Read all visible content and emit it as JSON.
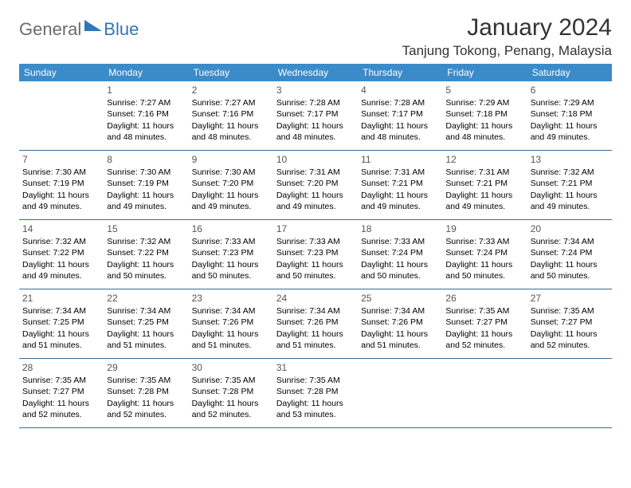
{
  "logo": {
    "general": "General",
    "blue": "Blue"
  },
  "header": {
    "month_title": "January 2024",
    "location": "Tanjung Tokong, Penang, Malaysia"
  },
  "colors": {
    "header_bar": "#3b8bc9",
    "row_border": "#3b6a93",
    "logo_grey": "#6b6b6b",
    "logo_blue": "#2f77b8",
    "title_color": "#333333",
    "daynum_color": "#555555",
    "background": "#ffffff"
  },
  "typography": {
    "month_title_fontsize": 30,
    "location_fontsize": 17,
    "dow_fontsize": 12,
    "cell_fontsize": 10.5,
    "daynum_fontsize": 12,
    "font_family": "Arial"
  },
  "layout": {
    "columns": 7,
    "rows": 5,
    "start_day_index": 1
  },
  "dow": [
    "Sunday",
    "Monday",
    "Tuesday",
    "Wednesday",
    "Thursday",
    "Friday",
    "Saturday"
  ],
  "days": [
    {
      "n": "1",
      "sunrise": "7:27 AM",
      "sunset": "7:16 PM",
      "daylight": "11 hours and 48 minutes."
    },
    {
      "n": "2",
      "sunrise": "7:27 AM",
      "sunset": "7:16 PM",
      "daylight": "11 hours and 48 minutes."
    },
    {
      "n": "3",
      "sunrise": "7:28 AM",
      "sunset": "7:17 PM",
      "daylight": "11 hours and 48 minutes."
    },
    {
      "n": "4",
      "sunrise": "7:28 AM",
      "sunset": "7:17 PM",
      "daylight": "11 hours and 48 minutes."
    },
    {
      "n": "5",
      "sunrise": "7:29 AM",
      "sunset": "7:18 PM",
      "daylight": "11 hours and 48 minutes."
    },
    {
      "n": "6",
      "sunrise": "7:29 AM",
      "sunset": "7:18 PM",
      "daylight": "11 hours and 49 minutes."
    },
    {
      "n": "7",
      "sunrise": "7:30 AM",
      "sunset": "7:19 PM",
      "daylight": "11 hours and 49 minutes."
    },
    {
      "n": "8",
      "sunrise": "7:30 AM",
      "sunset": "7:19 PM",
      "daylight": "11 hours and 49 minutes."
    },
    {
      "n": "9",
      "sunrise": "7:30 AM",
      "sunset": "7:20 PM",
      "daylight": "11 hours and 49 minutes."
    },
    {
      "n": "10",
      "sunrise": "7:31 AM",
      "sunset": "7:20 PM",
      "daylight": "11 hours and 49 minutes."
    },
    {
      "n": "11",
      "sunrise": "7:31 AM",
      "sunset": "7:21 PM",
      "daylight": "11 hours and 49 minutes."
    },
    {
      "n": "12",
      "sunrise": "7:31 AM",
      "sunset": "7:21 PM",
      "daylight": "11 hours and 49 minutes."
    },
    {
      "n": "13",
      "sunrise": "7:32 AM",
      "sunset": "7:21 PM",
      "daylight": "11 hours and 49 minutes."
    },
    {
      "n": "14",
      "sunrise": "7:32 AM",
      "sunset": "7:22 PM",
      "daylight": "11 hours and 49 minutes."
    },
    {
      "n": "15",
      "sunrise": "7:32 AM",
      "sunset": "7:22 PM",
      "daylight": "11 hours and 50 minutes."
    },
    {
      "n": "16",
      "sunrise": "7:33 AM",
      "sunset": "7:23 PM",
      "daylight": "11 hours and 50 minutes."
    },
    {
      "n": "17",
      "sunrise": "7:33 AM",
      "sunset": "7:23 PM",
      "daylight": "11 hours and 50 minutes."
    },
    {
      "n": "18",
      "sunrise": "7:33 AM",
      "sunset": "7:24 PM",
      "daylight": "11 hours and 50 minutes."
    },
    {
      "n": "19",
      "sunrise": "7:33 AM",
      "sunset": "7:24 PM",
      "daylight": "11 hours and 50 minutes."
    },
    {
      "n": "20",
      "sunrise": "7:34 AM",
      "sunset": "7:24 PM",
      "daylight": "11 hours and 50 minutes."
    },
    {
      "n": "21",
      "sunrise": "7:34 AM",
      "sunset": "7:25 PM",
      "daylight": "11 hours and 51 minutes."
    },
    {
      "n": "22",
      "sunrise": "7:34 AM",
      "sunset": "7:25 PM",
      "daylight": "11 hours and 51 minutes."
    },
    {
      "n": "23",
      "sunrise": "7:34 AM",
      "sunset": "7:26 PM",
      "daylight": "11 hours and 51 minutes."
    },
    {
      "n": "24",
      "sunrise": "7:34 AM",
      "sunset": "7:26 PM",
      "daylight": "11 hours and 51 minutes."
    },
    {
      "n": "25",
      "sunrise": "7:34 AM",
      "sunset": "7:26 PM",
      "daylight": "11 hours and 51 minutes."
    },
    {
      "n": "26",
      "sunrise": "7:35 AM",
      "sunset": "7:27 PM",
      "daylight": "11 hours and 52 minutes."
    },
    {
      "n": "27",
      "sunrise": "7:35 AM",
      "sunset": "7:27 PM",
      "daylight": "11 hours and 52 minutes."
    },
    {
      "n": "28",
      "sunrise": "7:35 AM",
      "sunset": "7:27 PM",
      "daylight": "11 hours and 52 minutes."
    },
    {
      "n": "29",
      "sunrise": "7:35 AM",
      "sunset": "7:28 PM",
      "daylight": "11 hours and 52 minutes."
    },
    {
      "n": "30",
      "sunrise": "7:35 AM",
      "sunset": "7:28 PM",
      "daylight": "11 hours and 52 minutes."
    },
    {
      "n": "31",
      "sunrise": "7:35 AM",
      "sunset": "7:28 PM",
      "daylight": "11 hours and 53 minutes."
    }
  ],
  "labels": {
    "sunrise": "Sunrise:",
    "sunset": "Sunset:",
    "daylight": "Daylight:"
  }
}
